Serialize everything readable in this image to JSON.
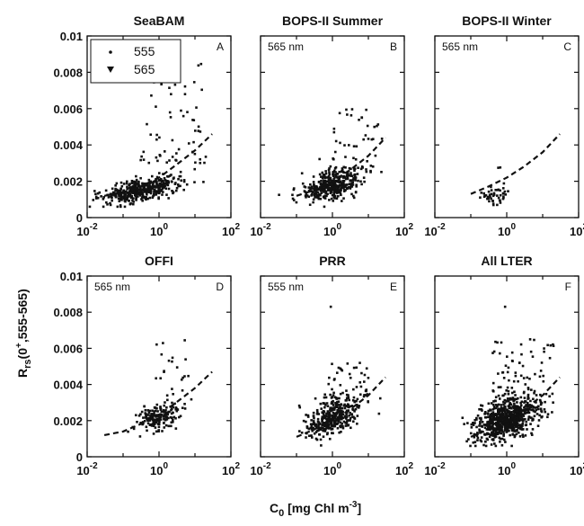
{
  "figure": {
    "ylabel": "Rrs(0+,555-565)",
    "xlabel": "C0 [mg Chl m-3]"
  },
  "chart_data": [
    {
      "type": "scatter",
      "panel": "A",
      "title": "SeaBAM",
      "annotation": "",
      "xscale": "log",
      "xlim": [
        0.01,
        100
      ],
      "ylim": [
        0,
        0.01
      ],
      "legend": {
        "position": "top-left",
        "entries": [
          "555",
          "565"
        ]
      },
      "model_curve": {
        "x": [
          0.03,
          0.1,
          0.3,
          1,
          3,
          10,
          30
        ],
        "y": [
          0.0012,
          0.0014,
          0.0017,
          0.0022,
          0.0029,
          0.0037,
          0.0046
        ]
      },
      "scatter": {
        "center": [
          0.3,
          0.0015
        ],
        "spread_logx": 0.55,
        "spread_y": 0.0003,
        "count": 420,
        "upper": {
          "count": 60,
          "xrange": [
            0.3,
            20
          ],
          "yrange": [
            0.003,
            0.0085
          ]
        }
      }
    },
    {
      "type": "scatter",
      "panel": "B",
      "title": "BOPS-II Summer",
      "annotation": "565 nm",
      "xscale": "log",
      "xlim": [
        0.01,
        100
      ],
      "ylim": [
        0,
        0.01
      ],
      "model_curve": {
        "x": [
          0.1,
          0.3,
          1,
          3,
          10,
          30
        ],
        "y": [
          0.0012,
          0.0015,
          0.002,
          0.0026,
          0.0034,
          0.0044
        ]
      },
      "scatter": {
        "center": [
          1,
          0.0018
        ],
        "spread_logx": 0.4,
        "spread_y": 0.0004,
        "count": 380,
        "upper": {
          "count": 50,
          "xrange": [
            1,
            25
          ],
          "yrange": [
            0.0025,
            0.006
          ]
        }
      }
    },
    {
      "type": "scatter",
      "panel": "C",
      "title": "BOPS-II Winter",
      "annotation": "565 nm",
      "xscale": "log",
      "xlim": [
        0.01,
        100
      ],
      "ylim": [
        0,
        0.01
      ],
      "model_curve": {
        "x": [
          0.1,
          0.3,
          1,
          3,
          10,
          30
        ],
        "y": [
          0.0013,
          0.0017,
          0.0022,
          0.0028,
          0.0036,
          0.0046
        ]
      },
      "scatter": {
        "center": [
          0.5,
          0.0012
        ],
        "spread_logx": 0.18,
        "spread_y": 0.0003,
        "count": 45,
        "upper": {
          "count": 2,
          "xrange": [
            0.5,
            0.8
          ],
          "yrange": [
            0.0025,
            0.003
          ]
        }
      }
    },
    {
      "type": "scatter",
      "panel": "D",
      "title": "OFFI",
      "annotation": "565 nm",
      "xscale": "log",
      "xlim": [
        0.01,
        100
      ],
      "ylim": [
        0,
        0.01
      ],
      "model_curve": {
        "x": [
          0.03,
          0.1,
          0.3,
          1,
          3,
          10,
          30
        ],
        "y": [
          0.0012,
          0.0014,
          0.0018,
          0.0023,
          0.003,
          0.0038,
          0.0047
        ]
      },
      "scatter": {
        "center": [
          1,
          0.0022
        ],
        "spread_logx": 0.28,
        "spread_y": 0.0004,
        "count": 170,
        "upper": {
          "count": 22,
          "xrange": [
            0.7,
            8
          ],
          "yrange": [
            0.003,
            0.0065
          ]
        }
      }
    },
    {
      "type": "scatter",
      "panel": "E",
      "title": "PRR",
      "annotation": "555 nm",
      "xscale": "log",
      "xlim": [
        0.01,
        100
      ],
      "ylim": [
        0,
        0.01
      ],
      "model_curve": {
        "x": [
          0.1,
          0.3,
          1,
          3,
          10,
          30
        ],
        "y": [
          0.0011,
          0.0015,
          0.002,
          0.0026,
          0.0034,
          0.0044
        ]
      },
      "scatter": {
        "center": [
          1,
          0.0022
        ],
        "spread_logx": 0.38,
        "spread_y": 0.0005,
        "count": 360,
        "upper": {
          "count": 45,
          "xrange": [
            0.6,
            10
          ],
          "yrange": [
            0.003,
            0.0052
          ]
        }
      },
      "outliers": [
        {
          "x": 0.9,
          "y": 0.0083
        }
      ]
    },
    {
      "type": "scatter",
      "panel": "F",
      "title": "All LTER",
      "annotation": "",
      "xscale": "log",
      "xlim": [
        0.01,
        100
      ],
      "ylim": [
        0,
        0.01
      ],
      "model_curve": {
        "x": [
          0.1,
          0.3,
          1,
          3,
          10,
          30
        ],
        "y": [
          0.0011,
          0.0015,
          0.002,
          0.0026,
          0.0034,
          0.0044
        ]
      },
      "scatter": {
        "center": [
          0.9,
          0.002
        ],
        "spread_logx": 0.42,
        "spread_y": 0.0005,
        "count": 700,
        "upper": {
          "count": 90,
          "xrange": [
            0.4,
            20
          ],
          "yrange": [
            0.003,
            0.0065
          ]
        }
      },
      "outliers": [
        {
          "x": 0.9,
          "y": 0.0083
        }
      ]
    }
  ]
}
